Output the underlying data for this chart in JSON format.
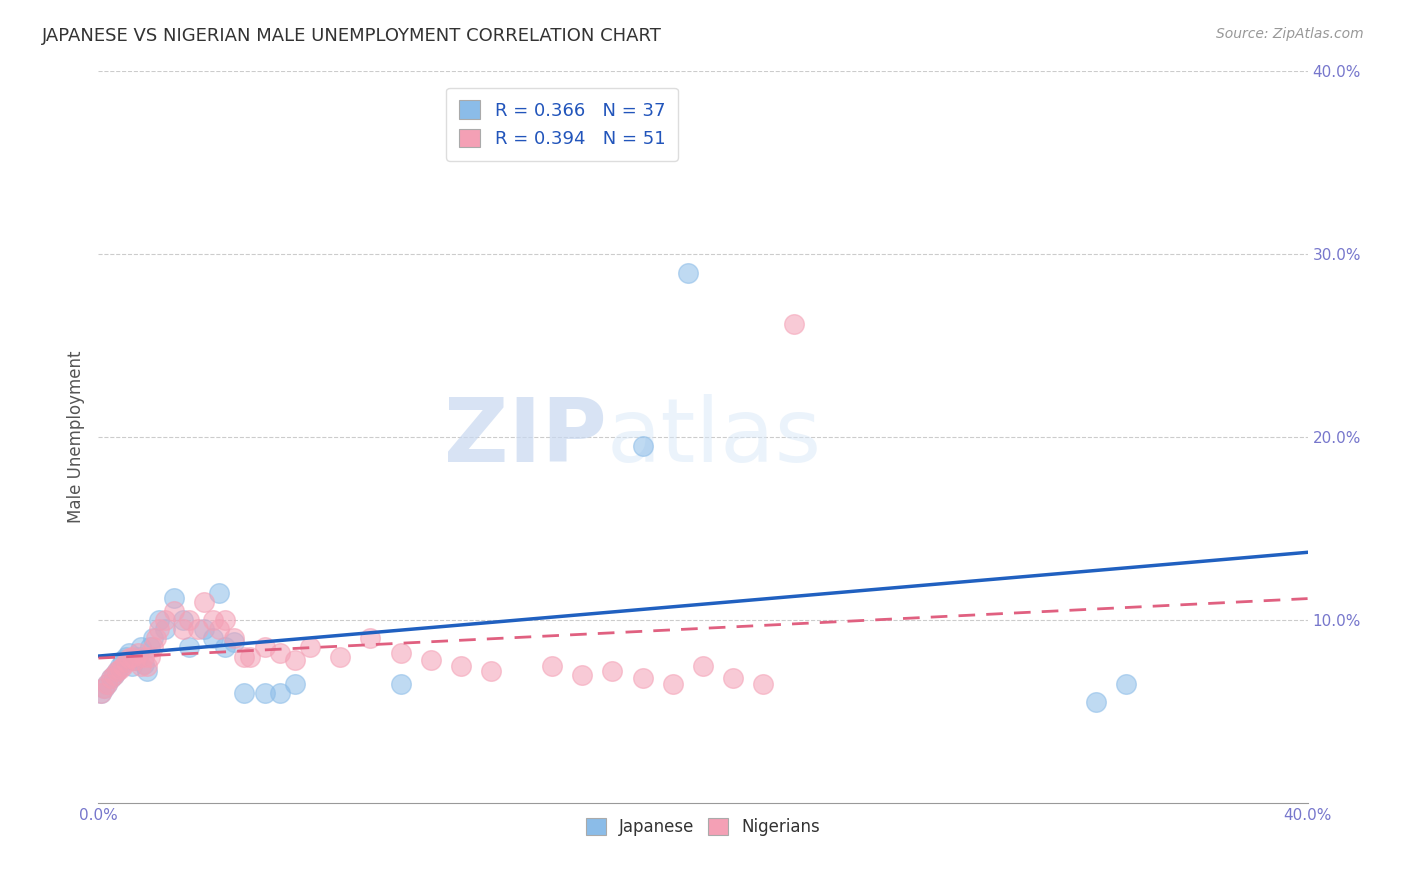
{
  "title": "JAPANESE VS NIGERIAN MALE UNEMPLOYMENT CORRELATION CHART",
  "source": "Source: ZipAtlas.com",
  "ylabel": "Male Unemployment",
  "xlim": [
    0.0,
    0.4
  ],
  "ylim": [
    0.0,
    0.4
  ],
  "xtick_positions": [
    0.0,
    0.4
  ],
  "xtick_labels": [
    "0.0%",
    "40.0%"
  ],
  "ytick_positions": [
    0.1,
    0.2,
    0.3,
    0.4
  ],
  "ytick_labels": [
    "10.0%",
    "20.0%",
    "30.0%",
    "40.0%"
  ],
  "grid_yticks": [
    0.1,
    0.2,
    0.3,
    0.4
  ],
  "japanese_color": "#8BBCE8",
  "nigerian_color": "#F4A0B5",
  "trendline_japanese_color": "#2060C0",
  "trendline_nigerian_color": "#E06080",
  "watermark_zip": "ZIP",
  "watermark_atlas": "atlas",
  "legend_R_japanese": "R = 0.366",
  "legend_N_japanese": "N = 37",
  "legend_R_nigerian": "R = 0.394",
  "legend_N_nigerian": "N = 51",
  "japanese_x": [
    0.001,
    0.002,
    0.003,
    0.004,
    0.005,
    0.006,
    0.007,
    0.008,
    0.009,
    0.01,
    0.011,
    0.012,
    0.013,
    0.014,
    0.015,
    0.016,
    0.017,
    0.018,
    0.02,
    0.022,
    0.025,
    0.028,
    0.03,
    0.035,
    0.038,
    0.04,
    0.042,
    0.045,
    0.048,
    0.055,
    0.06,
    0.065,
    0.1,
    0.18,
    0.195,
    0.33,
    0.34
  ],
  "japanese_y": [
    0.06,
    0.063,
    0.065,
    0.068,
    0.07,
    0.072,
    0.075,
    0.078,
    0.08,
    0.082,
    0.075,
    0.078,
    0.08,
    0.085,
    0.076,
    0.072,
    0.085,
    0.09,
    0.1,
    0.095,
    0.112,
    0.1,
    0.085,
    0.095,
    0.09,
    0.115,
    0.085,
    0.088,
    0.06,
    0.06,
    0.06,
    0.065,
    0.065,
    0.195,
    0.29,
    0.055,
    0.065
  ],
  "nigerian_x": [
    0.001,
    0.002,
    0.003,
    0.004,
    0.005,
    0.006,
    0.007,
    0.008,
    0.009,
    0.01,
    0.011,
    0.012,
    0.013,
    0.014,
    0.015,
    0.016,
    0.017,
    0.018,
    0.019,
    0.02,
    0.022,
    0.025,
    0.028,
    0.03,
    0.033,
    0.035,
    0.038,
    0.04,
    0.042,
    0.045,
    0.048,
    0.05,
    0.055,
    0.06,
    0.065,
    0.07,
    0.08,
    0.09,
    0.1,
    0.11,
    0.12,
    0.13,
    0.15,
    0.16,
    0.17,
    0.18,
    0.19,
    0.2,
    0.21,
    0.22,
    0.23
  ],
  "nigerian_y": [
    0.06,
    0.063,
    0.065,
    0.068,
    0.07,
    0.072,
    0.073,
    0.075,
    0.077,
    0.079,
    0.08,
    0.078,
    0.082,
    0.075,
    0.08,
    0.075,
    0.08,
    0.085,
    0.09,
    0.095,
    0.1,
    0.105,
    0.095,
    0.1,
    0.095,
    0.11,
    0.1,
    0.095,
    0.1,
    0.09,
    0.08,
    0.08,
    0.085,
    0.082,
    0.078,
    0.085,
    0.08,
    0.09,
    0.082,
    0.078,
    0.075,
    0.072,
    0.075,
    0.07,
    0.072,
    0.068,
    0.065,
    0.075,
    0.068,
    0.065,
    0.262
  ],
  "background_color": "#FFFFFF",
  "grid_color": "#CCCCCC",
  "tick_color": "#7777CC",
  "title_fontsize": 13,
  "source_fontsize": 10,
  "label_fontsize": 11,
  "legend_fontsize": 13
}
